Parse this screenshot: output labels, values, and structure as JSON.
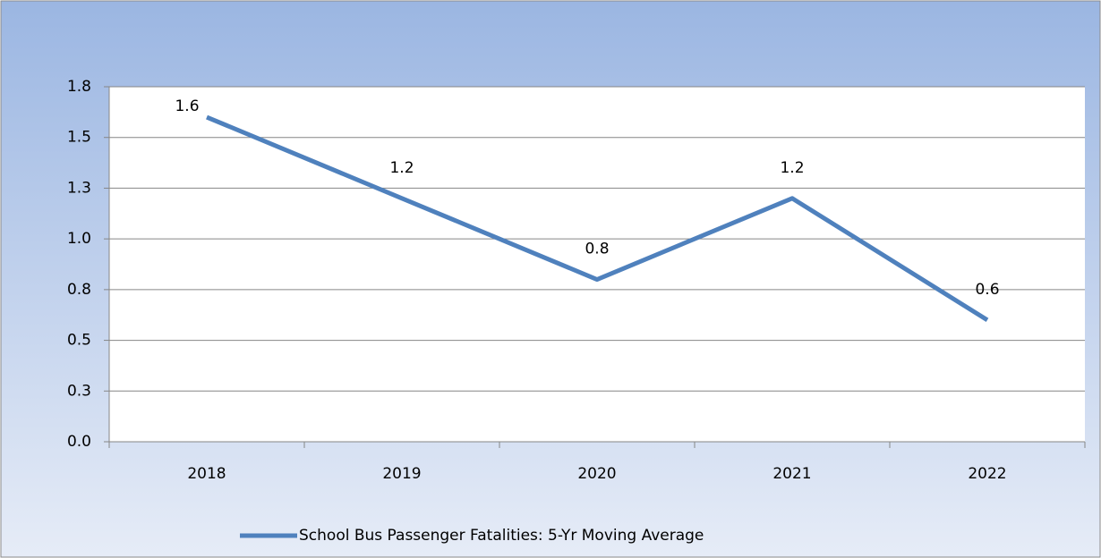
{
  "chart_data": {
    "type": "line",
    "categories": [
      "2018",
      "2019",
      "2020",
      "2021",
      "2022"
    ],
    "series": [
      {
        "name": "School Bus Passenger Fatalities: 5-Yr Moving Average",
        "color": "#4f81bd",
        "values": [
          1.6,
          1.2,
          0.8,
          1.2,
          0.6
        ]
      }
    ],
    "ylim": [
      0,
      1.75
    ],
    "yticks": [
      {
        "value": 0,
        "label": "0.0"
      },
      {
        "value": 0.25,
        "label": "0.3"
      },
      {
        "value": 0.5,
        "label": "0.5"
      },
      {
        "value": 0.75,
        "label": "0.8"
      },
      {
        "value": 1,
        "label": "1.0"
      },
      {
        "value": 1.25,
        "label": "1.3"
      },
      {
        "value": 1.5,
        "label": "1.5"
      },
      {
        "value": 1.75,
        "label": "1.8"
      }
    ],
    "grid": true,
    "legend": "bottom",
    "data_labels": true
  }
}
